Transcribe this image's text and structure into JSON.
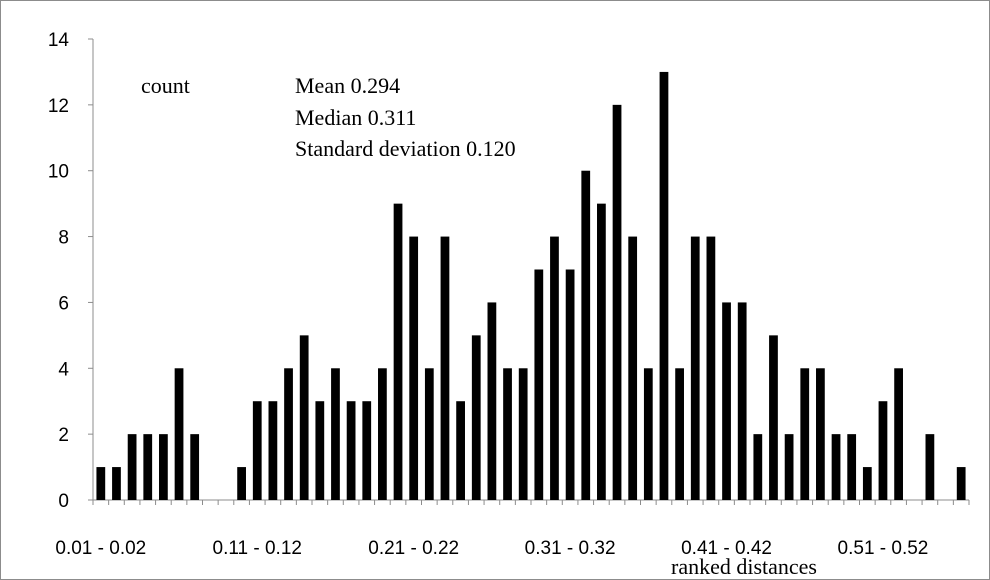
{
  "chart_data": {
    "type": "bar",
    "series_label": "count",
    "xlabel": "ranked distances",
    "ylabel": "",
    "ylim": [
      0,
      14
    ],
    "yticks": [
      0,
      2,
      4,
      6,
      8,
      10,
      12,
      14
    ],
    "xtick_labels": [
      "0.01 - 0.02",
      "0.11 - 0.12",
      "0.21 - 0.22",
      "0.31 - 0.32",
      "0.41 - 0.42",
      "0.51 - 0.52"
    ],
    "xtick_every": 10,
    "annotations": [
      "Mean 0.294",
      "Median  0.311",
      "Standard deviation 0.120"
    ],
    "values": [
      1,
      1,
      2,
      2,
      2,
      4,
      2,
      0,
      0,
      1,
      3,
      3,
      4,
      5,
      3,
      4,
      3,
      3,
      4,
      9,
      8,
      4,
      8,
      3,
      5,
      6,
      4,
      4,
      7,
      8,
      7,
      10,
      9,
      12,
      8,
      4,
      13,
      4,
      8,
      8,
      6,
      6,
      2,
      5,
      2,
      4,
      4,
      2,
      2,
      1,
      3,
      4,
      0,
      2,
      0,
      1
    ],
    "bar_color": "#000000",
    "grid": false,
    "legend": "none"
  }
}
